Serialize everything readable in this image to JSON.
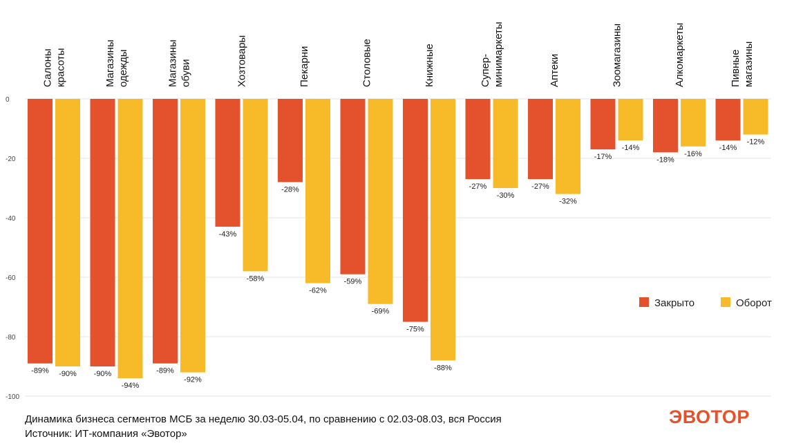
{
  "chart_data": {
    "type": "bar",
    "categories": [
      [
        "Салоны",
        "красоты"
      ],
      [
        "Магазины",
        "одежды"
      ],
      [
        "Магазины",
        "обуви"
      ],
      [
        "Хозтовары"
      ],
      [
        "Пекарни"
      ],
      [
        "Столовые"
      ],
      [
        "Книжные"
      ],
      [
        "Супер-",
        "минимаркеты"
      ],
      [
        "Аптеки"
      ],
      [
        "Зоомагазины"
      ],
      [
        "Алкомаркеты"
      ],
      [
        "Пивные",
        "магазины"
      ]
    ],
    "series": [
      {
        "name": "Закрыто",
        "color": "#e3522c",
        "values": [
          -89,
          -90,
          -89,
          -43,
          -28,
          -59,
          -75,
          -27,
          -27,
          -17,
          -18,
          -14
        ],
        "labels": [
          "-89%",
          "-90%",
          "-89%",
          "-43%",
          "-28%",
          "-59%",
          "-75%",
          "-27%",
          "-27%",
          "-17%",
          "-18%",
          "-14%"
        ]
      },
      {
        "name": "Оборот",
        "color": "#f7bb2a",
        "values": [
          -90,
          -94,
          -92,
          -58,
          -62,
          -69,
          -88,
          -30,
          -32,
          -14,
          -16,
          -12
        ],
        "labels": [
          "-90%",
          "-94%",
          "-92%",
          "-58%",
          "-62%",
          "-69%",
          "-88%",
          "-30%",
          "-32%",
          "-14%",
          "-16%",
          "-12%"
        ]
      }
    ],
    "yticks": [
      0,
      -20,
      -40,
      -60,
      -80,
      -100
    ],
    "ylim": [
      -100,
      0
    ],
    "grid": true,
    "legend": "right"
  },
  "footer": {
    "line1": "Динамика бизнеса сегментов МСБ за неделю 30.03-05.04, по сравнению с 02.03-08.03, вся Россия",
    "line2": "Источник: ИТ-компания «Эвотор»"
  },
  "logo": "ЭВОТОР"
}
